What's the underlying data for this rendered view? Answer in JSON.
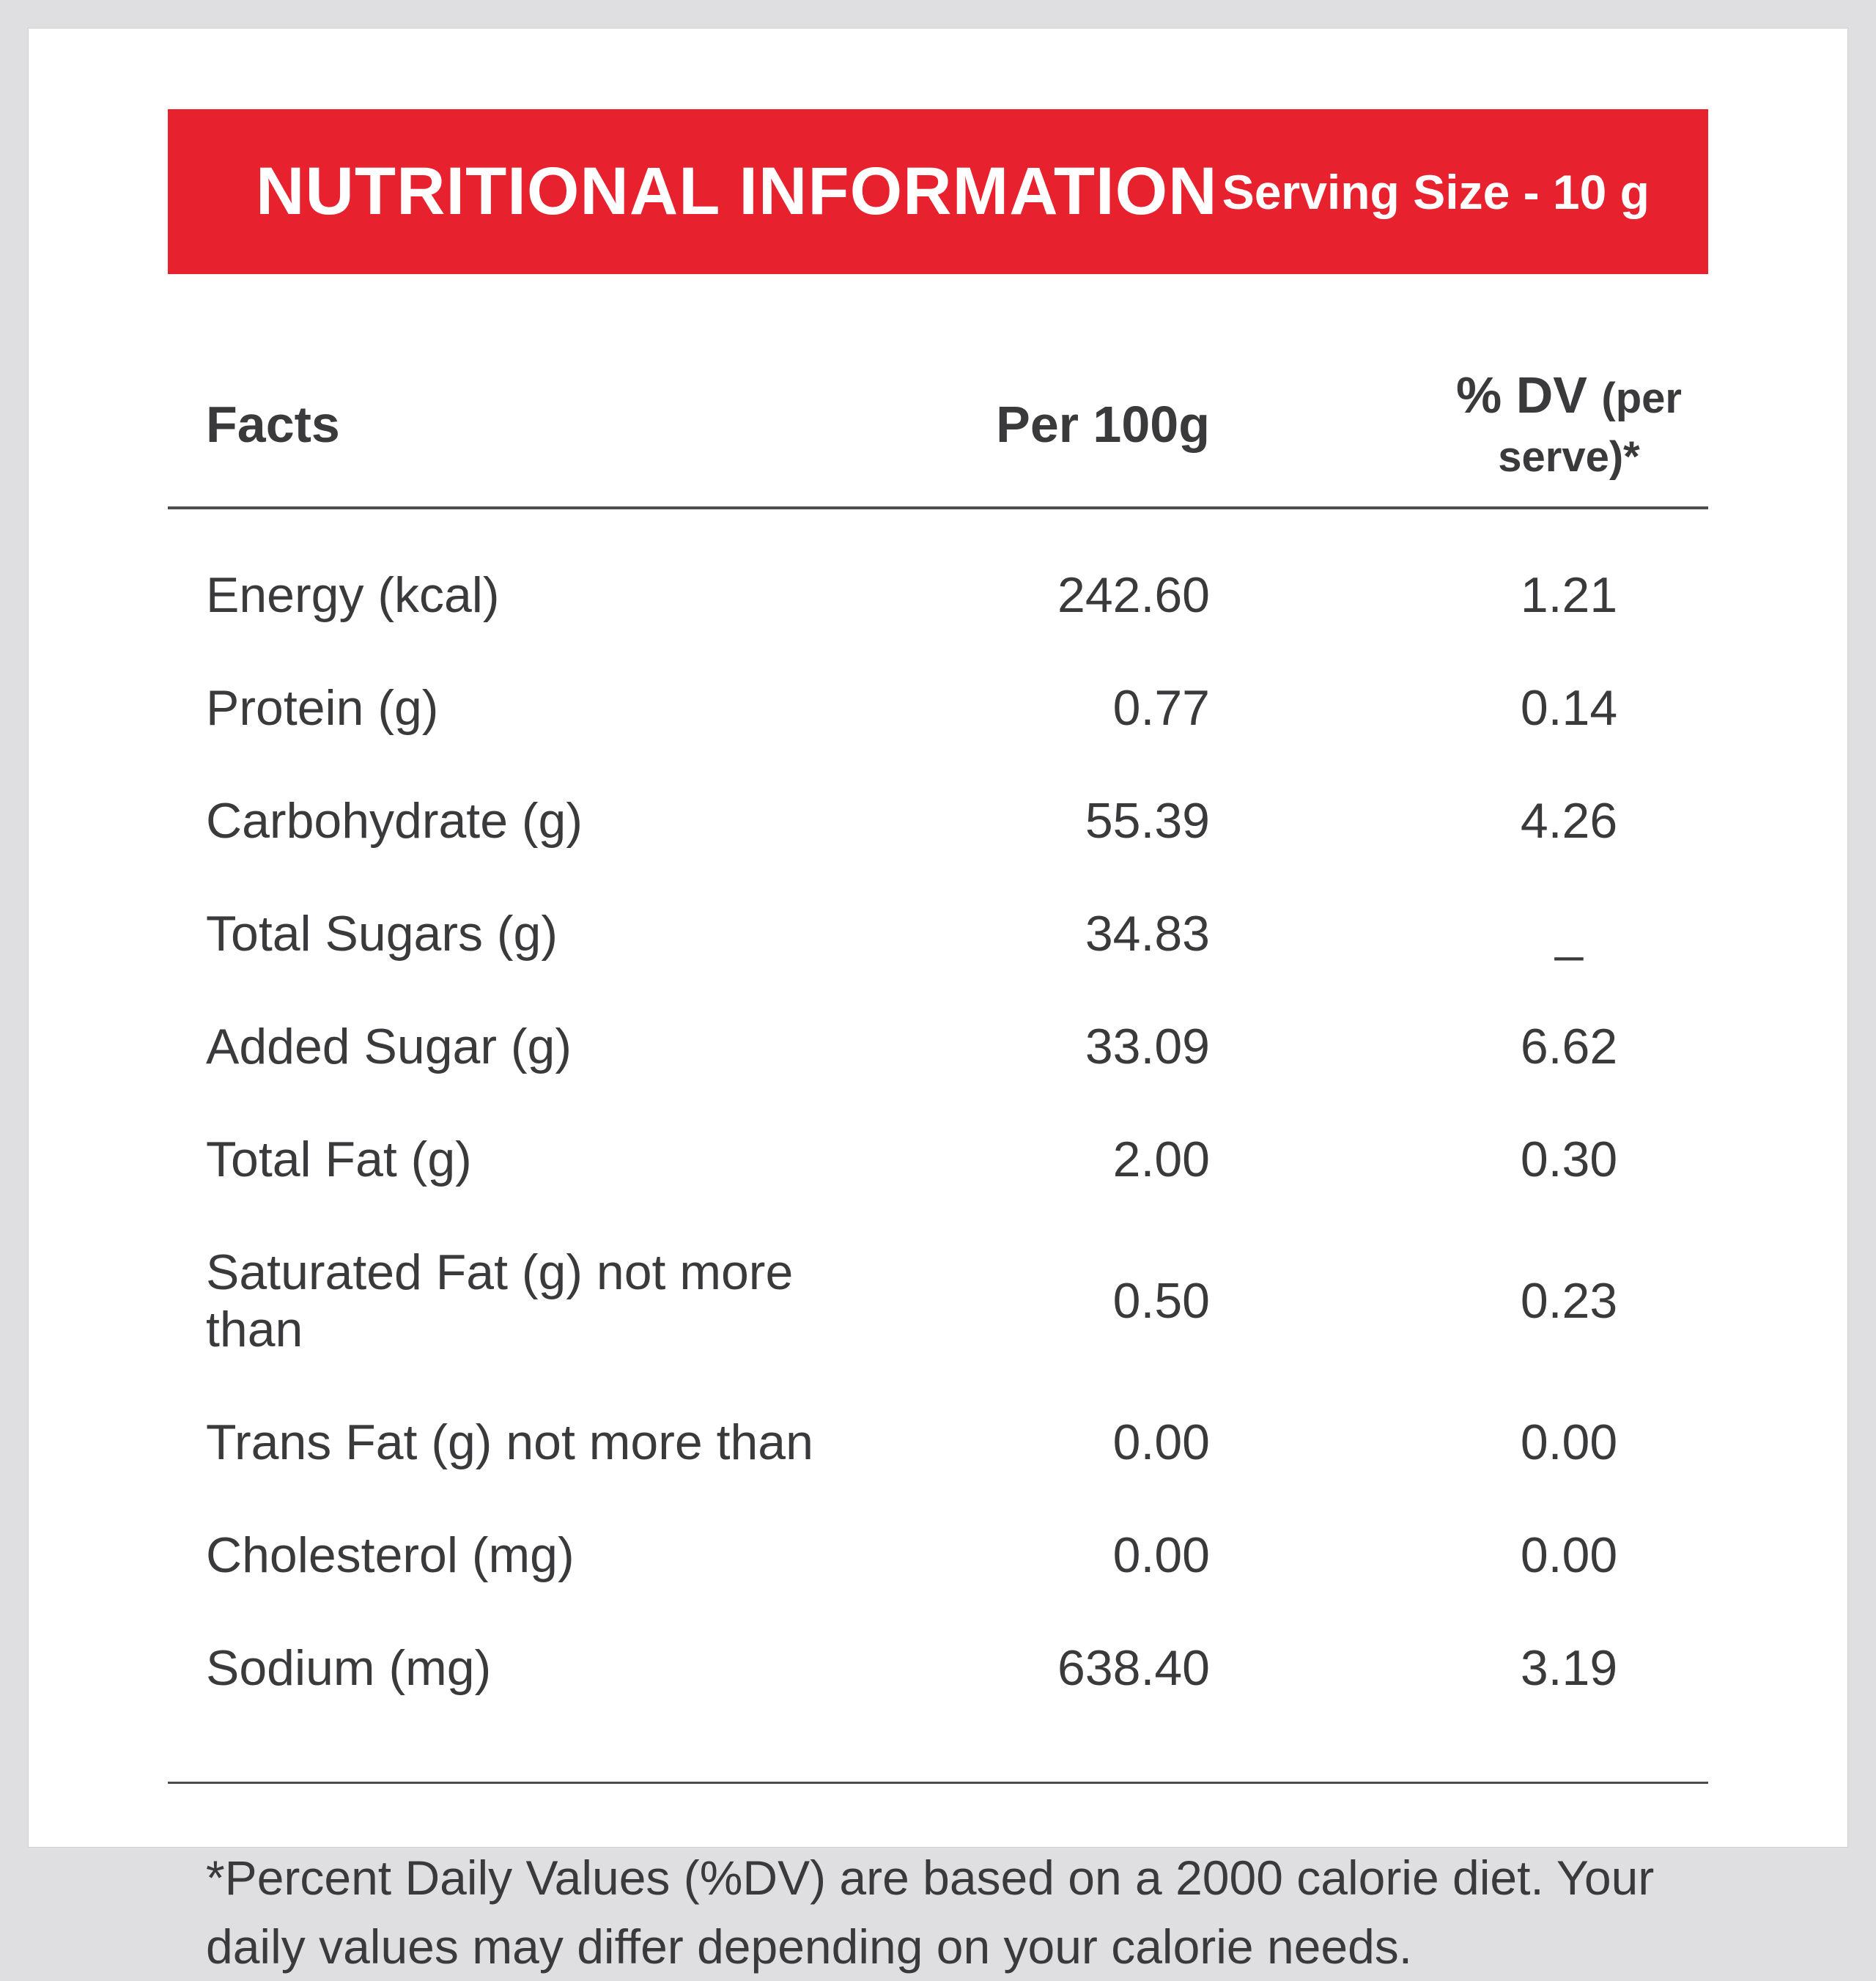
{
  "banner": {
    "title": "NUTRITIONAL INFORMATION",
    "serving_size": "Serving Size - 10 g"
  },
  "table": {
    "headers": {
      "facts": "Facts",
      "per100g": "Per 100g",
      "dv_main": "% DV",
      "dv_sub": "(per serve)*"
    },
    "rows": [
      {
        "label": "Energy (kcal)",
        "per100g": "242.60",
        "dv": "1.21"
      },
      {
        "label": "Protein (g)",
        "per100g": "0.77",
        "dv": "0.14"
      },
      {
        "label": "Carbohydrate (g)",
        "per100g": "55.39",
        "dv": "4.26"
      },
      {
        "label": "Total Sugars (g)",
        "per100g": "34.83",
        "dv": "_"
      },
      {
        "label": "Added Sugar (g)",
        "per100g": "33.09",
        "dv": "6.62"
      },
      {
        "label": "Total Fat (g)",
        "per100g": "2.00",
        "dv": "0.30"
      },
      {
        "label": "Saturated Fat (g) not more than",
        "per100g": "0.50",
        "dv": "0.23"
      },
      {
        "label": "Trans Fat (g) not more than",
        "per100g": "0.00",
        "dv": "0.00"
      },
      {
        "label": "Cholesterol (mg)",
        "per100g": "0.00",
        "dv": "0.00"
      },
      {
        "label": "Sodium (mg)",
        "per100g": "638.40",
        "dv": "3.19"
      }
    ]
  },
  "footnote": "*Percent Daily Values (%DV) are based on a 2000 calorie diet. Your daily values may differ depending on your calorie needs.",
  "colors": {
    "accent_red": "#e8212e",
    "text": "#3a3a3c",
    "background": "#dfdfe2",
    "card": "#ffffff"
  }
}
